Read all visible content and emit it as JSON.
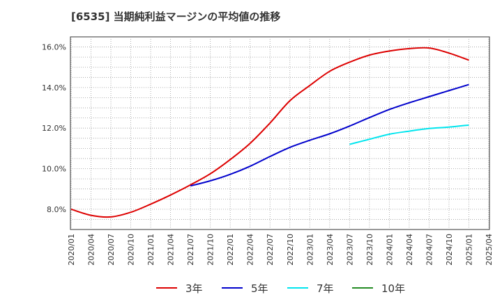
{
  "chart_data": {
    "type": "line",
    "title": "[6535]  当期純利益マージンの平均値の推移",
    "xlabel": "",
    "ylabel": "",
    "ylim": [
      7.0,
      16.5
    ],
    "yticks": [
      8.0,
      10.0,
      12.0,
      14.0,
      16.0
    ],
    "ytick_labels": [
      "8.0%",
      "10.0%",
      "12.0%",
      "14.0%",
      "16.0%"
    ],
    "x_ticks": [
      "2020/01",
      "2020/04",
      "2020/07",
      "2020/10",
      "2021/01",
      "2021/04",
      "2021/07",
      "2021/10",
      "2022/01",
      "2022/04",
      "2022/07",
      "2022/10",
      "2023/01",
      "2023/04",
      "2023/07",
      "2023/10",
      "2024/01",
      "2024/04",
      "2024/07",
      "2024/10",
      "2025/01",
      "2025/04"
    ],
    "grid": true,
    "legend_position": "bottom",
    "series": [
      {
        "name": "3年",
        "color": "#dd0000",
        "points": [
          [
            "2020/01",
            8.0
          ],
          [
            "2020/04",
            7.7
          ],
          [
            "2020/07",
            7.62
          ],
          [
            "2020/10",
            7.85
          ],
          [
            "2021/01",
            8.25
          ],
          [
            "2021/04",
            8.7
          ],
          [
            "2021/07",
            9.2
          ],
          [
            "2021/10",
            9.75
          ],
          [
            "2022/01",
            10.45
          ],
          [
            "2022/04",
            11.25
          ],
          [
            "2022/07",
            12.25
          ],
          [
            "2022/10",
            13.35
          ],
          [
            "2023/01",
            14.1
          ],
          [
            "2023/04",
            14.8
          ],
          [
            "2023/07",
            15.25
          ],
          [
            "2023/10",
            15.6
          ],
          [
            "2024/01",
            15.8
          ],
          [
            "2024/04",
            15.92
          ],
          [
            "2024/07",
            15.95
          ],
          [
            "2024/10",
            15.7
          ],
          [
            "2025/01",
            15.35
          ]
        ]
      },
      {
        "name": "5年",
        "color": "#0000cc",
        "points": [
          [
            "2021/07",
            9.15
          ],
          [
            "2021/10",
            9.4
          ],
          [
            "2022/01",
            9.72
          ],
          [
            "2022/04",
            10.12
          ],
          [
            "2022/07",
            10.6
          ],
          [
            "2022/10",
            11.05
          ],
          [
            "2023/01",
            11.4
          ],
          [
            "2023/04",
            11.72
          ],
          [
            "2023/07",
            12.1
          ],
          [
            "2023/10",
            12.52
          ],
          [
            "2024/01",
            12.92
          ],
          [
            "2024/04",
            13.25
          ],
          [
            "2024/07",
            13.55
          ],
          [
            "2024/10",
            13.85
          ],
          [
            "2025/01",
            14.15
          ]
        ]
      },
      {
        "name": "7年",
        "color": "#00e5ee",
        "points": [
          [
            "2023/07",
            11.2
          ],
          [
            "2023/10",
            11.45
          ],
          [
            "2024/01",
            11.7
          ],
          [
            "2024/04",
            11.85
          ],
          [
            "2024/07",
            11.98
          ],
          [
            "2024/10",
            12.05
          ],
          [
            "2025/01",
            12.15
          ]
        ]
      },
      {
        "name": "10年",
        "color": "#228b22",
        "points": []
      }
    ]
  }
}
